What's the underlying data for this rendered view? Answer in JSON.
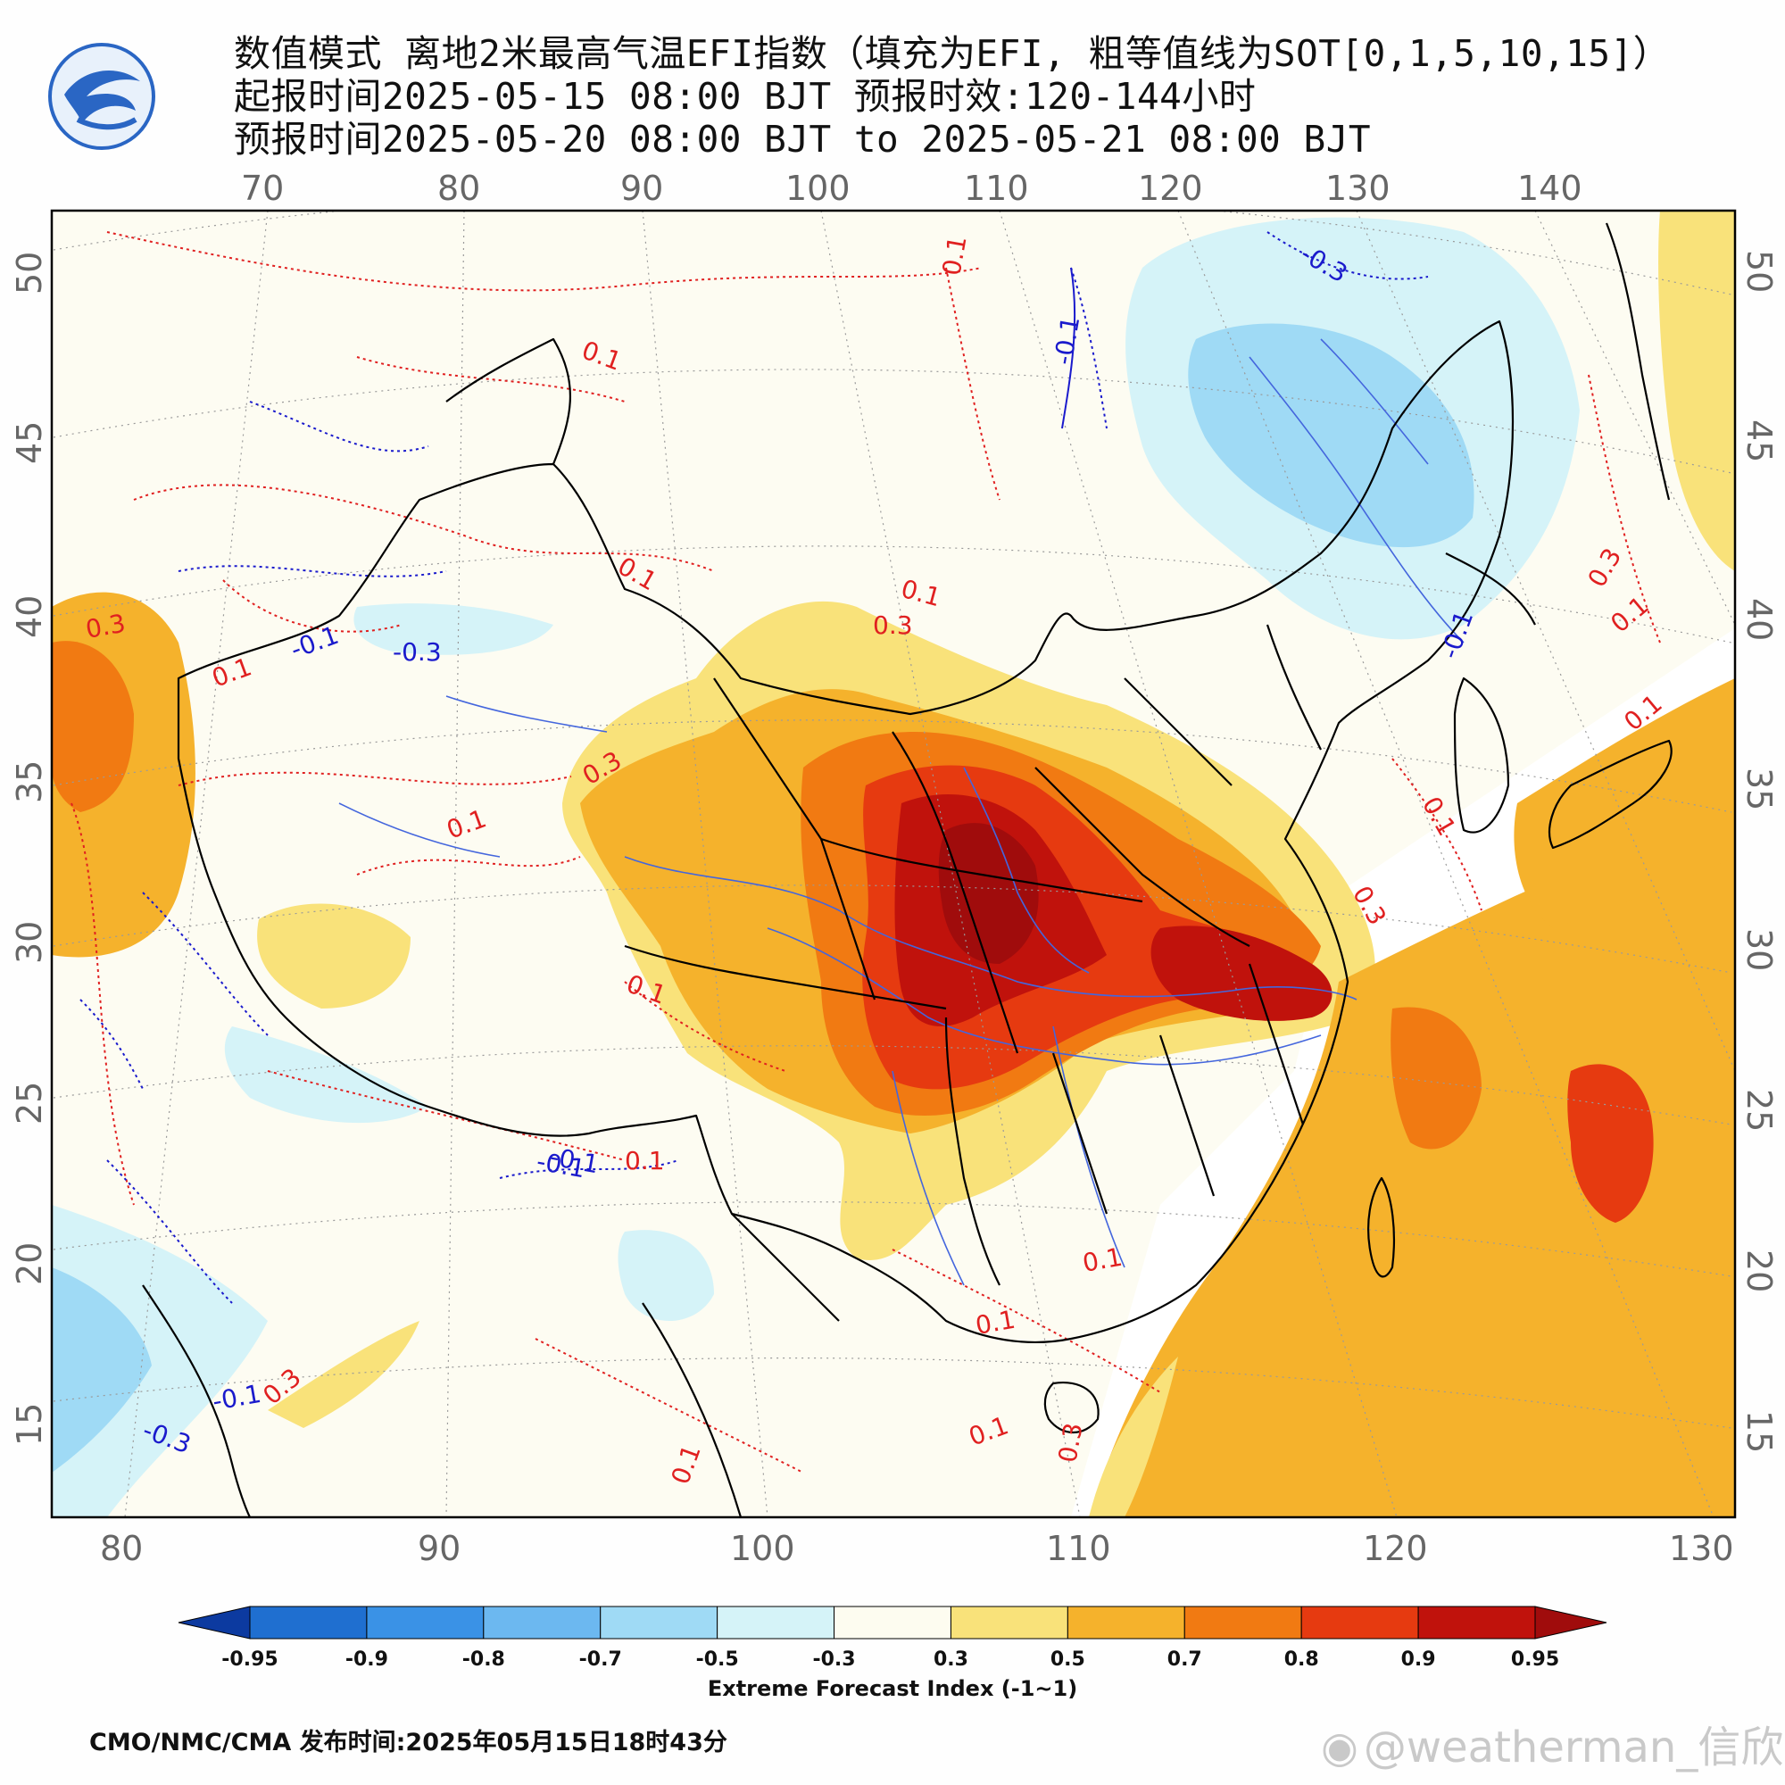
{
  "header": {
    "title_line1": "数值模式 离地2米最高气温EFI指数（填充为EFI, 粗等值线为SOT[0,1,5,10,15]）",
    "title_line2": "起报时间2025-05-15 08:00 BJT 预报时效:120-144小时",
    "title_line3": "预报时间2025-05-20 08:00 BJT to 2025-05-21 08:00 BJT",
    "logo_icon": "cma-weather-logo"
  },
  "map": {
    "top_lon_labels": [
      "70",
      "80",
      "90",
      "100",
      "110",
      "120",
      "130",
      "140"
    ],
    "bottom_lon_labels": [
      "80",
      "90",
      "100",
      "110",
      "120",
      "130"
    ],
    "left_lat_labels": [
      "50",
      "45",
      "40",
      "35",
      "30",
      "25",
      "20",
      "15"
    ],
    "right_lat_labels": [
      "50",
      "45",
      "40",
      "35",
      "30",
      "25",
      "20",
      "15"
    ],
    "contour_labels": [
      {
        "text": "0.1",
        "color": "red"
      },
      {
        "text": "0.1",
        "color": "red"
      },
      {
        "text": "0.1",
        "color": "red"
      },
      {
        "text": "0.1",
        "color": "red"
      },
      {
        "text": "0.3",
        "color": "red"
      },
      {
        "text": "0.3",
        "color": "red"
      },
      {
        "text": "0.1",
        "color": "red"
      },
      {
        "text": "0.1",
        "color": "red"
      },
      {
        "text": "0.3",
        "color": "red"
      },
      {
        "text": "0.3",
        "color": "red"
      },
      {
        "text": "0.1",
        "color": "red"
      },
      {
        "text": "0.1",
        "color": "red"
      },
      {
        "text": "0.1",
        "color": "red"
      },
      {
        "text": "0.1",
        "color": "red"
      },
      {
        "text": "0.1",
        "color": "red"
      },
      {
        "text": "0.3",
        "color": "red"
      },
      {
        "text": "0.1",
        "color": "red"
      },
      {
        "text": "0.1",
        "color": "red"
      },
      {
        "text": "0.1",
        "color": "red"
      },
      {
        "text": "0.1",
        "color": "red"
      },
      {
        "text": "0.3",
        "color": "red"
      },
      {
        "text": "0.3",
        "color": "red"
      },
      {
        "text": "-0.1",
        "color": "blue"
      },
      {
        "text": "-0.3",
        "color": "blue"
      },
      {
        "text": "-0.1",
        "color": "blue"
      },
      {
        "text": "-0.3",
        "color": "blue"
      },
      {
        "text": "-0.1",
        "color": "blue"
      },
      {
        "text": "-0.1",
        "color": "blue"
      },
      {
        "text": "-0.3",
        "color": "blue"
      },
      {
        "text": "-0.1",
        "color": "blue"
      },
      {
        "text": "-0.1",
        "color": "blue"
      }
    ],
    "colors": {
      "contour_red": "#e02020",
      "contour_blue": "#1a1acc",
      "border": "#000000",
      "river": "#4466dd",
      "land_bg": "#fdfcf2",
      "sea_bg": "#ffffff"
    }
  },
  "legend": {
    "ticks": [
      "-0.95",
      "-0.9",
      "-0.8",
      "-0.7",
      "-0.5",
      "-0.3",
      "0.3",
      "0.5",
      "0.7",
      "0.8",
      "0.9",
      "0.95"
    ],
    "colors": [
      "#0c3aa0",
      "#1f6fd0",
      "#3a92e6",
      "#6cb8f0",
      "#9fdaf5",
      "#d5f3f8",
      "#fdfcf0",
      "#f9e27a",
      "#f5b22c",
      "#f17a12",
      "#e63a10",
      "#c0120c",
      "#a00c0c"
    ],
    "label": "Extreme Forecast Index (-1~1)"
  },
  "footer": {
    "issuer": "CMO/NMC/CMA  发布时间:2025年05月15日18时43分",
    "watermark": "@weatherman_信欣"
  }
}
